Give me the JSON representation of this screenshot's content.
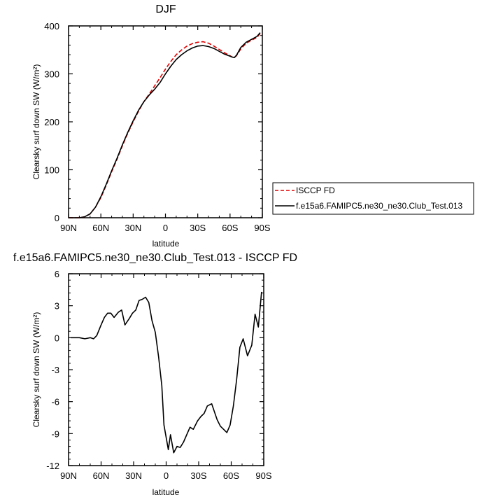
{
  "chart_data": [
    {
      "type": "line",
      "title": "DJF",
      "xlabel": "latitude",
      "ylabel": "Clearsky surf down SW (W/m²)",
      "x_tick_labels": [
        "90N",
        "60N",
        "30N",
        "0",
        "30S",
        "60S",
        "90S"
      ],
      "xlim": [
        90,
        -90
      ],
      "ylim": [
        0,
        400
      ],
      "y_ticks": [
        0,
        100,
        200,
        300,
        400
      ],
      "grid": false,
      "legend_position": "outside-right",
      "series": [
        {
          "name": "ISCCP FD",
          "color": "#e00000",
          "dash": "dashed",
          "x": [
            90,
            85,
            80,
            75,
            70,
            65,
            60,
            55,
            50,
            45,
            40,
            35,
            30,
            25,
            20,
            15,
            10,
            5,
            0,
            -5,
            -10,
            -15,
            -20,
            -25,
            -30,
            -35,
            -40,
            -45,
            -50,
            -55,
            -60,
            -62,
            -64,
            -66,
            -70,
            -75,
            -80,
            -85,
            -88
          ],
          "y": [
            0,
            0,
            0,
            2,
            8,
            22,
            42,
            68,
            96,
            122,
            150,
            176,
            200,
            222,
            242,
            258,
            275,
            292,
            310,
            326,
            340,
            350,
            358,
            363,
            366,
            367,
            364,
            358,
            351,
            344,
            338,
            335,
            334,
            338,
            352,
            364,
            370,
            376,
            384
          ]
        },
        {
          "name": "f.e15a6.FAMIPC5.ne30_ne30.Club_Test.013",
          "color": "#000000",
          "dash": "solid",
          "x": [
            90,
            85,
            80,
            75,
            70,
            65,
            60,
            55,
            50,
            45,
            40,
            35,
            30,
            25,
            20,
            15,
            10,
            5,
            0,
            -5,
            -10,
            -15,
            -20,
            -25,
            -30,
            -35,
            -40,
            -45,
            -50,
            -55,
            -60,
            -62,
            -64,
            -66,
            -70,
            -75,
            -80,
            -85,
            -88
          ],
          "y": [
            0,
            0,
            0,
            2,
            8,
            22,
            44,
            70,
            98,
            124,
            152,
            178,
            202,
            224,
            242,
            256,
            268,
            282,
            300,
            316,
            330,
            340,
            348,
            354,
            358,
            359,
            357,
            353,
            347,
            341,
            337,
            335,
            334,
            339,
            355,
            366,
            372,
            378,
            386
          ]
        }
      ]
    },
    {
      "type": "line",
      "title": "f.e15a6.FAMIPC5.ne30_ne30.Club_Test.013 - ISCCP FD",
      "xlabel": "latitude",
      "ylabel": "Clearsky surf down SW (W/m²)",
      "x_tick_labels": [
        "90N",
        "60N",
        "30N",
        "0",
        "30S",
        "60S",
        "90S"
      ],
      "xlim": [
        90,
        -90
      ],
      "ylim": [
        -12,
        6
      ],
      "y_ticks": [
        -12,
        -9,
        -6,
        -3,
        0,
        3,
        6
      ],
      "grid": false,
      "series": [
        {
          "color": "#000000",
          "dash": "solid",
          "x": [
            88,
            80,
            75,
            70,
            67,
            64,
            60,
            57,
            54,
            51,
            48,
            44,
            41,
            38,
            34,
            31,
            28,
            25,
            22,
            19,
            16,
            13,
            10,
            7,
            4,
            2,
            -2,
            -4,
            -7,
            -10,
            -13,
            -16,
            -19,
            -22,
            -25,
            -29,
            -32,
            -35,
            -38,
            -42,
            -47,
            -50,
            -53,
            -56,
            -59,
            -62,
            -65,
            -68,
            -71,
            -75,
            -79,
            -82,
            -85,
            -88
          ],
          "y": [
            0,
            0,
            -0.1,
            0,
            -0.1,
            0.2,
            1.2,
            1.9,
            2.3,
            2.3,
            1.9,
            2.4,
            2.6,
            1.2,
            1.8,
            2.3,
            2.6,
            3.5,
            3.6,
            3.8,
            3.3,
            1.6,
            0.5,
            -1.8,
            -4.5,
            -8.2,
            -10.5,
            -9.1,
            -10.8,
            -10.2,
            -10.3,
            -9.8,
            -9.1,
            -8.4,
            -8.6,
            -7.8,
            -7.4,
            -7.1,
            -6.4,
            -6.2,
            -7.7,
            -8.3,
            -8.6,
            -8.9,
            -8.2,
            -6.4,
            -3.9,
            -0.9,
            -0.1,
            -1.7,
            -0.7,
            2.2,
            1.0,
            4.3
          ]
        }
      ]
    }
  ]
}
